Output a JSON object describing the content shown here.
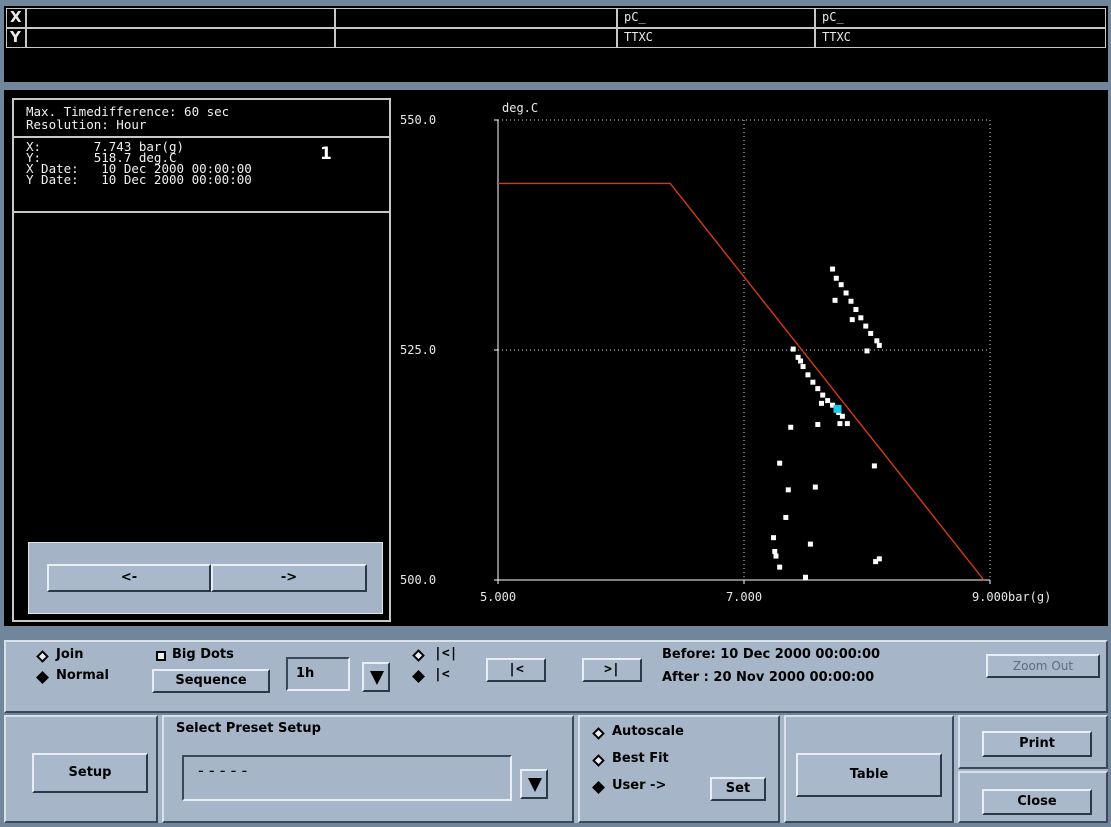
{
  "header": {
    "x_label": "X",
    "y_label": "Y",
    "x_row": [
      "",
      "",
      "pC_",
      "pC_"
    ],
    "y_row": [
      "",
      "",
      "TTXC",
      "TTXC"
    ]
  },
  "info": {
    "max_timediff": "Max. Timedifference: 60 sec",
    "resolution": "Resolution: Hour",
    "x_line": "X:       7.743 bar(g)",
    "y_line": "Y:       518.7 deg.C",
    "x_date": "X Date:   10 Dec 2000 00:00:00",
    "y_date": "Y Date:   10 Dec 2000 00:00:00",
    "cursor_index": "1",
    "nav_left": "<-",
    "nav_right": "->"
  },
  "chart_data": {
    "type": "scatter",
    "xlabel": "bar(g)",
    "ylabel": "deg.C",
    "xlim": [
      5.0,
      9.0
    ],
    "ylim": [
      500.0,
      550.0
    ],
    "x_ticks": [
      "5.000",
      "7.000",
      "9.000"
    ],
    "y_ticks": [
      "500.0",
      "525.0",
      "550.0"
    ],
    "grid": "dotted",
    "fit_line": [
      [
        5.0,
        543.1
      ],
      [
        6.4,
        543.1
      ],
      [
        8.95,
        500.0
      ]
    ],
    "cursor_point": [
      7.76,
      518.6
    ],
    "points": [
      [
        7.72,
        533.8
      ],
      [
        7.75,
        532.8
      ],
      [
        7.79,
        532.1
      ],
      [
        7.83,
        531.2
      ],
      [
        7.87,
        530.3
      ],
      [
        7.91,
        529.4
      ],
      [
        7.95,
        528.5
      ],
      [
        7.99,
        527.6
      ],
      [
        8.03,
        526.8
      ],
      [
        8.08,
        526.0
      ],
      [
        8.1,
        525.5
      ],
      [
        7.74,
        530.4
      ],
      [
        7.88,
        528.3
      ],
      [
        8.0,
        524.9
      ],
      [
        7.4,
        525.1
      ],
      [
        7.44,
        524.2
      ],
      [
        7.48,
        523.2
      ],
      [
        7.52,
        522.3
      ],
      [
        7.56,
        521.5
      ],
      [
        7.6,
        520.8
      ],
      [
        7.64,
        520.1
      ],
      [
        7.68,
        519.5
      ],
      [
        7.72,
        519.0
      ],
      [
        7.77,
        518.2
      ],
      [
        7.8,
        517.8
      ],
      [
        7.84,
        517.0
      ],
      [
        7.46,
        523.8
      ],
      [
        7.63,
        519.2
      ],
      [
        7.78,
        517.0
      ],
      [
        7.6,
        516.9
      ],
      [
        7.38,
        516.6
      ],
      [
        7.29,
        512.7
      ],
      [
        8.06,
        512.4
      ],
      [
        7.58,
        510.1
      ],
      [
        7.36,
        509.8
      ],
      [
        7.34,
        506.8
      ],
      [
        7.24,
        504.6
      ],
      [
        7.54,
        503.9
      ],
      [
        7.25,
        503.1
      ],
      [
        7.26,
        502.6
      ],
      [
        8.1,
        502.3
      ],
      [
        8.07,
        502.0
      ],
      [
        7.29,
        501.4
      ],
      [
        7.5,
        500.3
      ]
    ]
  },
  "controls": {
    "join": "Join",
    "normal": "Normal",
    "big_dots": "Big Dots",
    "sequence": "Sequence",
    "interval": "1h",
    "first": "|<|",
    "back": "|<",
    "prev_btn": "|<",
    "next_btn": ">|",
    "before": "Before: 10 Dec 2000 00:00:00",
    "after": "After : 20 Nov 2000 00:00:00",
    "zoom_out": "Zoom Out"
  },
  "bottom": {
    "setup": "Setup",
    "preset_title": "Select Preset Setup",
    "preset_value": "- - - - -",
    "autoscale": "Autoscale",
    "best_fit": "Best Fit",
    "user": "User ->",
    "set": "Set",
    "table": "Table",
    "print": "Print",
    "close": "Close"
  },
  "colors": {
    "fit_line": "#d63a12",
    "points": "#ffffff",
    "cursor": "#1ec8e8",
    "grid": "#d8d8d8"
  }
}
